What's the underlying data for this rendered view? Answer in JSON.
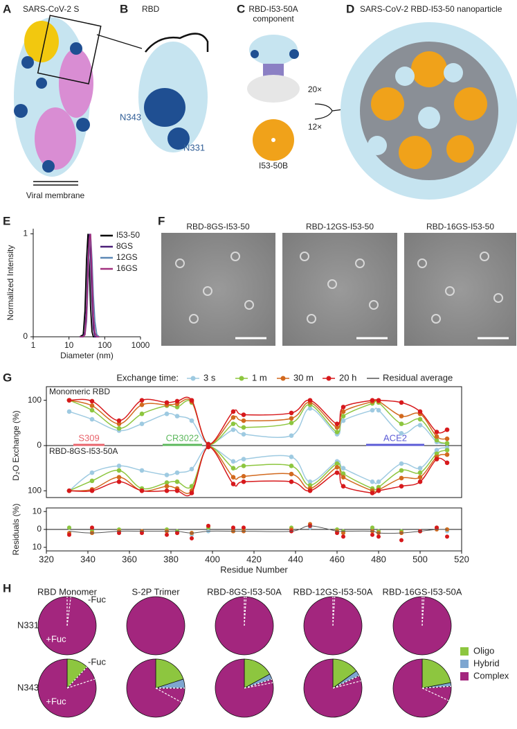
{
  "panels": {
    "A": {
      "letter": "A",
      "title": "SARS-CoV-2 S",
      "membrane": "Viral membrane"
    },
    "B": {
      "letter": "B",
      "title": "RBD",
      "glycan_a": "N343",
      "glycan_b": "N331"
    },
    "C": {
      "letter": "C",
      "title": [
        "RBD-I53-50A",
        "component"
      ],
      "component_b": "I53-50B",
      "mult_a": "20×",
      "mult_b": "12×"
    },
    "D": {
      "letter": "D",
      "title": "SARS-CoV-2 RBD-I53-50 nanoparticle"
    },
    "E": {
      "letter": "E"
    },
    "F": {
      "letter": "F",
      "titles": [
        "RBD-8GS-I53-50",
        "RBD-12GS-I53-50",
        "RBD-16GS-I53-50"
      ]
    },
    "G": {
      "letter": "G"
    },
    "H": {
      "letter": "H"
    }
  },
  "chart_data": [
    {
      "type": "line",
      "xscale": "log",
      "xlabel": "Diameter (nm)",
      "ylabel": "Normalized Intensity",
      "xlim": [
        1,
        1000
      ],
      "xticks": [
        1,
        10,
        100,
        1000
      ],
      "ylim": [
        0,
        1.05
      ],
      "yticks": [
        0,
        1
      ],
      "legend": "upper right",
      "x": [
        20,
        25,
        28,
        31,
        34,
        37,
        40,
        44,
        48,
        53,
        60,
        70
      ],
      "series": [
        {
          "name": "I53-50",
          "color": "#000000",
          "values": [
            0,
            0.02,
            0.25,
            0.75,
            1,
            0.7,
            0.3,
            0.05,
            0,
            0,
            0,
            0
          ]
        },
        {
          "name": "8GS",
          "color": "#4b1e78",
          "values": [
            0,
            0,
            0.05,
            0.3,
            0.75,
            1,
            0.8,
            0.35,
            0.08,
            0,
            0,
            0
          ]
        },
        {
          "name": "12GS",
          "color": "#5b88b5",
          "values": [
            0,
            0,
            0.02,
            0.15,
            0.5,
            0.85,
            1,
            0.75,
            0.4,
            0.15,
            0.02,
            0
          ]
        },
        {
          "name": "16GS",
          "color": "#a2307f",
          "values": [
            0,
            0,
            0.02,
            0.2,
            0.6,
            0.95,
            1,
            0.6,
            0.2,
            0.04,
            0,
            0
          ]
        }
      ]
    },
    {
      "type": "line",
      "legend_title": "Exchange time:",
      "label": "Monomeric RBD",
      "ylabel": "D₂O Exchange (%)",
      "xlim": [
        320,
        520
      ],
      "ylim": [
        0,
        130
      ],
      "yticks": [
        0,
        100
      ],
      "x": [
        331,
        342,
        355,
        366,
        378,
        383,
        390,
        398,
        410,
        415,
        438,
        447,
        460,
        463,
        477,
        480,
        491,
        500,
        508,
        513
      ],
      "annotations": [
        {
          "text": "S309",
          "start": 333,
          "end": 348,
          "color": "#e8636b"
        },
        {
          "text": "CR3022",
          "start": 376,
          "end": 395,
          "color": "#5cb85c"
        },
        {
          "text": "ACE2",
          "start": 474,
          "end": 502,
          "color": "#5b5bd6"
        }
      ],
      "series": [
        {
          "name": "3 s",
          "color": "#9ecae1",
          "values": [
            75,
            58,
            33,
            48,
            70,
            65,
            55,
            4,
            35,
            25,
            22,
            82,
            25,
            55,
            78,
            78,
            27,
            45,
            8,
            5
          ]
        },
        {
          "name": "1 m",
          "color": "#8dc63f",
          "values": [
            100,
            78,
            38,
            70,
            88,
            85,
            95,
            3,
            48,
            40,
            50,
            90,
            30,
            65,
            93,
            95,
            48,
            58,
            12,
            5
          ]
        },
        {
          "name": "30 m",
          "color": "#d2691e",
          "values": [
            100,
            88,
            48,
            90,
            90,
            92,
            97,
            3,
            62,
            55,
            60,
            95,
            40,
            75,
            97,
            98,
            65,
            70,
            20,
            15
          ]
        },
        {
          "name": "20 h",
          "color": "#d7191c",
          "values": [
            100,
            98,
            55,
            100,
            95,
            98,
            100,
            3,
            75,
            68,
            72,
            100,
            48,
            85,
            100,
            100,
            95,
            75,
            30,
            35
          ]
        }
      ]
    },
    {
      "type": "line",
      "inverted": true,
      "label": "RBD-8GS-I53-50A",
      "xlim": [
        320,
        520
      ],
      "ylim": [
        0,
        115
      ],
      "yticks": [
        100
      ],
      "x": [
        331,
        342,
        355,
        366,
        378,
        383,
        390,
        398,
        410,
        415,
        438,
        447,
        460,
        463,
        477,
        480,
        491,
        500,
        508,
        513
      ],
      "series": [
        {
          "color": "#9ecae1",
          "values": [
            100,
            60,
            45,
            55,
            65,
            60,
            52,
            3,
            35,
            30,
            25,
            80,
            35,
            50,
            80,
            80,
            40,
            50,
            10,
            5
          ]
        },
        {
          "color": "#8dc63f",
          "values": [
            100,
            78,
            55,
            95,
            82,
            80,
            90,
            3,
            50,
            45,
            45,
            88,
            40,
            62,
            95,
            92,
            55,
            60,
            18,
            10
          ]
        },
        {
          "color": "#d2691e",
          "values": [
            100,
            97,
            70,
            100,
            90,
            95,
            100,
            3,
            70,
            68,
            63,
            95,
            48,
            70,
            100,
            98,
            72,
            70,
            25,
            20
          ]
        },
        {
          "color": "#d7191c",
          "values": [
            100,
            100,
            80,
            100,
            100,
            100,
            105,
            3,
            85,
            80,
            80,
            100,
            60,
            90,
            105,
            100,
            90,
            80,
            30,
            38
          ]
        }
      ]
    },
    {
      "type": "scatter",
      "xlabel": "Residue Number",
      "ylabel": "Residuals (%)",
      "xlim": [
        320,
        520
      ],
      "xticks": [
        320,
        340,
        360,
        380,
        400,
        420,
        440,
        460,
        480,
        500,
        520
      ],
      "ylim": [
        -12,
        12
      ],
      "yticks": [
        {
          "value": 10,
          "label": "10"
        },
        0,
        {
          "value": -10,
          "label": "10"
        }
      ],
      "x": [
        331,
        342,
        355,
        366,
        378,
        383,
        390,
        398,
        410,
        415,
        438,
        447,
        460,
        463,
        477,
        480,
        491,
        500,
        508,
        513
      ],
      "series": [
        {
          "color": "#9ecae1",
          "values": [
            1,
            -2,
            -1,
            -1,
            -1,
            -1,
            -3,
            -1,
            -1,
            0,
            0,
            1,
            -1,
            -1,
            1,
            -1,
            -1,
            -1,
            1,
            -1
          ]
        },
        {
          "color": "#8dc63f",
          "values": [
            1,
            -1,
            0,
            -1,
            0,
            -1,
            -2,
            1,
            -1,
            0,
            1,
            2,
            0,
            -1,
            1,
            -1,
            -1,
            -1,
            1,
            0
          ]
        },
        {
          "color": "#d2691e",
          "values": [
            -2,
            -2,
            -1,
            -1,
            -1,
            -2,
            -2,
            2,
            -1,
            -1,
            0,
            3,
            -1,
            -2,
            -1,
            -2,
            -2,
            -1,
            0,
            0
          ]
        },
        {
          "color": "#d7191c",
          "values": [
            -3,
            1,
            -2,
            -2,
            -3,
            -2,
            -5,
            2,
            1,
            1,
            -1,
            2,
            -2,
            -4,
            -3,
            -4,
            -6,
            -1,
            1,
            -4
          ]
        },
        {
          "name": "Residual average",
          "color": "#555555",
          "line": true,
          "values": [
            -1,
            -2,
            -1,
            -1,
            -1,
            -1,
            -2,
            -1,
            -1,
            -1,
            -1,
            2,
            -1,
            -1,
            -1,
            -2,
            -2,
            -1,
            0,
            0
          ]
        }
      ]
    },
    {
      "type": "pie",
      "columns": [
        "RBD Monomer",
        "S-2P Trimer",
        "RBD-8GS-I53-50A",
        "RBD-12GS-I53-50A",
        "RBD-16GS-I53-50A"
      ],
      "rows": [
        "N331",
        "N343"
      ],
      "categories": [
        "Oligo",
        "Hybrid",
        "Complex"
      ],
      "colors": [
        "#8dc63f",
        "#7ea6d0",
        "#a3267e"
      ],
      "pies": [
        [
          {
            "values": [
              0,
              0,
              100
            ],
            "nonfucosylated": 2,
            "minus_label": "-Fuc",
            "plus_label": "+Fuc"
          },
          {
            "values": [
              0,
              0,
              100
            ]
          },
          {
            "values": [
              0,
              0,
              100
            ],
            "nonfucosylated": 1
          },
          {
            "values": [
              0,
              0,
              100
            ],
            "nonfucosylated": 1
          },
          {
            "values": [
              0,
              0,
              100
            ],
            "nonfucosylated": 1
          }
        ],
        [
          {
            "values": [
              12,
              0,
              88
            ],
            "nonfucosylated": 8,
            "minus_label": "-Fuc",
            "plus_label": "+Fuc"
          },
          {
            "values": [
              20,
              5,
              75
            ],
            "nonfucosylated": 8
          },
          {
            "values": [
              17,
              3,
              80
            ],
            "nonfucosylated": 2
          },
          {
            "values": [
              15,
              3,
              82
            ],
            "nonfucosylated": 3
          },
          {
            "values": [
              22,
              2,
              76
            ],
            "nonfucosylated": 8
          }
        ]
      ]
    }
  ]
}
